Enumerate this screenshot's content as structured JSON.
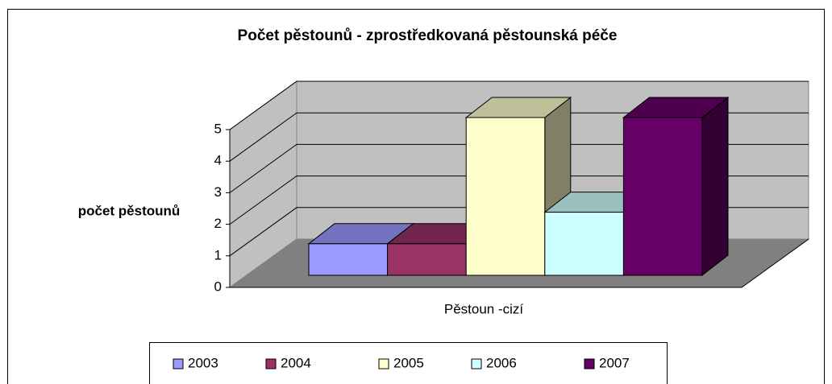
{
  "chart_data": {
    "type": "bar",
    "title": "Počet pěstounů - zprostředkovaná pěstounská péče",
    "y_label": "počet pěstounů",
    "categories": [
      "Pěstoun -cizí"
    ],
    "series": [
      {
        "name": "2003",
        "color": "#9999ff",
        "values": [
          1
        ]
      },
      {
        "name": "2004",
        "color": "#993366",
        "values": [
          1
        ]
      },
      {
        "name": "2005",
        "color": "#ffffcc",
        "values": [
          5
        ]
      },
      {
        "name": "2006",
        "color": "#ccffff",
        "values": [
          2
        ]
      },
      {
        "name": "2007",
        "color": "#660066",
        "values": [
          5
        ]
      }
    ],
    "ylim": [
      0,
      5
    ],
    "yticks": [
      0,
      1,
      2,
      3,
      4,
      5
    ],
    "grid": true,
    "legend": "bottom"
  }
}
